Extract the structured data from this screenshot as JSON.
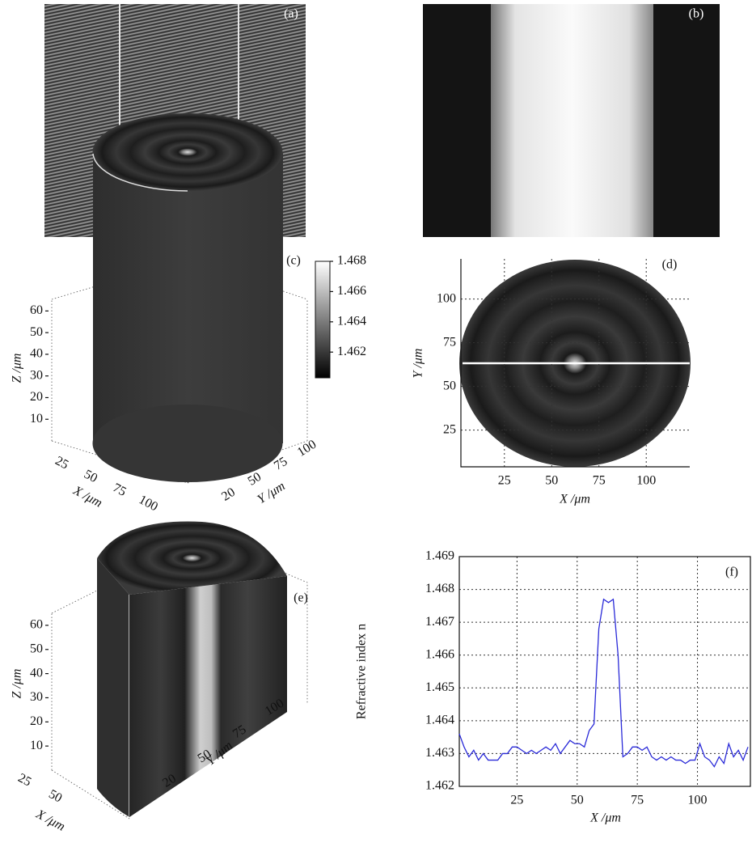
{
  "chart_data": [
    {
      "type": "image",
      "label": "(a)"
    },
    {
      "type": "image",
      "label": "(b)"
    },
    {
      "type": "surface3d",
      "label": "(c)",
      "xlabel": "X /μm",
      "ylabel": "Y /μm",
      "zlabel": "Z /μm",
      "xticks": [
        25,
        50,
        75,
        100
      ],
      "yticks": [
        20,
        50,
        75,
        100
      ],
      "zlim": [
        0,
        65
      ],
      "zticks": [
        10,
        20,
        30,
        40,
        50,
        60
      ],
      "clim": [
        1.4603,
        1.468
      ],
      "cticks": [
        1.462,
        1.464,
        1.466,
        1.468
      ]
    },
    {
      "type": "heatmap",
      "label": "(d)",
      "xlabel": "X /μm",
      "ylabel": "Y /μm",
      "xlim": [
        2,
        123
      ],
      "xticks": [
        25,
        50,
        75,
        100
      ],
      "ylim": [
        4,
        123
      ],
      "yticks": [
        25,
        50,
        75,
        100
      ],
      "grid": true
    },
    {
      "type": "surface3d",
      "label": "(e)",
      "xlabel": "X /μm",
      "ylabel": "Y /μm",
      "zlabel": "Z /μm",
      "xticks": [
        25,
        50
      ],
      "yticks": [
        20,
        50,
        75,
        100
      ],
      "zlim": [
        0,
        65
      ],
      "zticks": [
        10,
        20,
        30,
        40,
        50,
        60
      ]
    },
    {
      "type": "line",
      "label": "(f)",
      "xlabel": "X /μm",
      "ylabel": "Refractive index n",
      "x": [
        1,
        3,
        5,
        7,
        9,
        11,
        13,
        15,
        17,
        19,
        21,
        23,
        25,
        27,
        29,
        31,
        33,
        35,
        37,
        39,
        41,
        43,
        45,
        47,
        49,
        51,
        53,
        55,
        57,
        59,
        61,
        63,
        65,
        67,
        69,
        71,
        73,
        75,
        77,
        79,
        81,
        83,
        85,
        87,
        89,
        91,
        93,
        95,
        97,
        99,
        101,
        103,
        105,
        107,
        109,
        111,
        113,
        115,
        117,
        119,
        121
      ],
      "series": [
        {
          "color": "#2a2ad8",
          "values": [
            1.4636,
            1.4632,
            1.4629,
            1.4631,
            1.4628,
            1.463,
            1.4628,
            1.4628,
            1.4628,
            1.463,
            1.463,
            1.4632,
            1.4632,
            1.4631,
            1.463,
            1.4631,
            1.463,
            1.4631,
            1.4632,
            1.4631,
            1.4633,
            1.463,
            1.4632,
            1.4634,
            1.4633,
            1.4633,
            1.4632,
            1.4637,
            1.4639,
            1.4668,
            1.4677,
            1.4676,
            1.4677,
            1.466,
            1.4629,
            1.463,
            1.4632,
            1.4632,
            1.4631,
            1.4632,
            1.4629,
            1.4628,
            1.4629,
            1.4628,
            1.4629,
            1.4628,
            1.4628,
            1.4627,
            1.4628,
            1.4628,
            1.4633,
            1.4629,
            1.4628,
            1.4626,
            1.4629,
            1.4627,
            1.4633,
            1.4629,
            1.4631,
            1.4628,
            1.4632
          ]
        }
      ],
      "xlim": [
        1,
        122
      ],
      "xticks": [
        25,
        50,
        75,
        100
      ],
      "ylim": [
        1.462,
        1.469
      ],
      "yticks": [
        1.462,
        1.463,
        1.464,
        1.465,
        1.466,
        1.467,
        1.468,
        1.469
      ],
      "grid": true
    }
  ]
}
